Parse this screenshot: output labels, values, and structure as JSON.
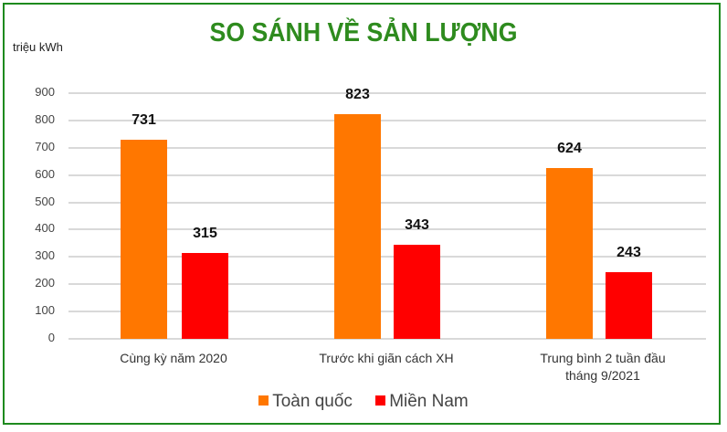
{
  "title": "SO SÁNH VỀ SẢN LƯỢNG",
  "unit": "triệu kWh",
  "colors": {
    "toan_quoc": "#ff7700",
    "mien_nam": "#ff0000",
    "title": "#2e8b1e",
    "border": "#1e8a1e"
  },
  "legend": [
    {
      "label": "Toàn quốc",
      "color": "#ff7700"
    },
    {
      "label": "Miền Nam",
      "color": "#ff0000"
    }
  ],
  "y_ticks": [
    "900",
    "800",
    "700",
    "600",
    "500",
    "400",
    "300",
    "200",
    "100",
    "0"
  ],
  "categories": [
    {
      "line1": "Cùng kỳ năm 2020",
      "line2": ""
    },
    {
      "line1": "Trước khi giãn cách XH",
      "line2": ""
    },
    {
      "line1": "Trung bình 2 tuần đầu",
      "line2": "tháng 9/2021"
    }
  ],
  "values": {
    "toan_quoc": [
      "731",
      "823",
      "624"
    ],
    "mien_nam": [
      "315",
      "343",
      "243"
    ]
  },
  "chart_data": {
    "type": "bar",
    "title": "SO SÁNH VỀ SẢN LƯỢNG",
    "xlabel": "",
    "ylabel": "triệu kWh",
    "categories": [
      "Cùng kỳ năm 2020",
      "Trước khi giãn cách XH",
      "Trung bình 2 tuần đầu tháng 9/2021"
    ],
    "series": [
      {
        "name": "Toàn quốc",
        "color": "#ff7700",
        "values": [
          731,
          823,
          624
        ]
      },
      {
        "name": "Miền Nam",
        "color": "#ff0000",
        "values": [
          315,
          343,
          243
        ]
      }
    ],
    "ylim": [
      0,
      900
    ],
    "yticks": [
      0,
      100,
      200,
      300,
      400,
      500,
      600,
      700,
      800,
      900
    ],
    "grid": true,
    "legend_position": "bottom",
    "data_labels": true
  }
}
